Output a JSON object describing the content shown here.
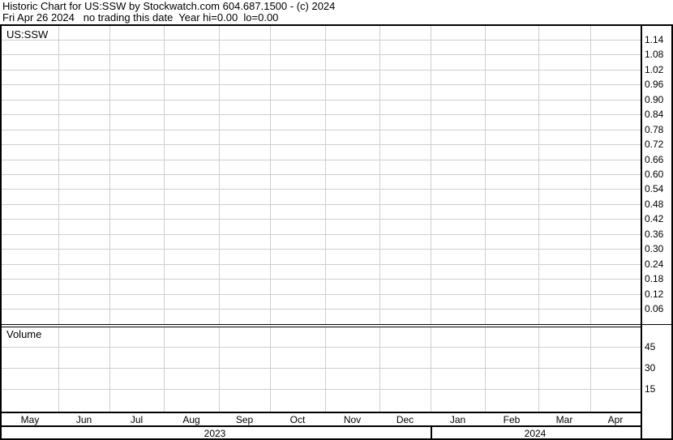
{
  "header": {
    "line1": "Historic Chart for US:SSW by Stockwatch.com 604.687.1500 - (c) 2024",
    "line2": "Fri Apr 26 2024   no trading this date  Year hi=0.00  lo=0.00"
  },
  "chart_data": [
    {
      "type": "line",
      "title": "US:SSW",
      "x_ticks": [
        "May",
        "Jun",
        "Jul",
        "Aug",
        "Sep",
        "Oct",
        "Nov",
        "Dec",
        "Jan",
        "Feb",
        "Mar",
        "Apr"
      ],
      "x_years": [
        "2023",
        "2024"
      ],
      "y_ticks": [
        "1.14",
        "1.08",
        "1.02",
        "0.96",
        "0.90",
        "0.84",
        "0.78",
        "0.72",
        "0.66",
        "0.60",
        "0.54",
        "0.48",
        "0.42",
        "0.36",
        "0.30",
        "0.24",
        "0.18",
        "0.12",
        "0.06"
      ],
      "ylim": [
        0,
        1.17
      ],
      "grid": true,
      "series": []
    },
    {
      "type": "bar",
      "title": "Volume",
      "y_ticks": [
        "45",
        "30",
        "15"
      ],
      "ylim": [
        0,
        60
      ],
      "grid": true,
      "series": []
    }
  ],
  "colors": {
    "grid": "#cfcfcf",
    "border": "#000000"
  }
}
